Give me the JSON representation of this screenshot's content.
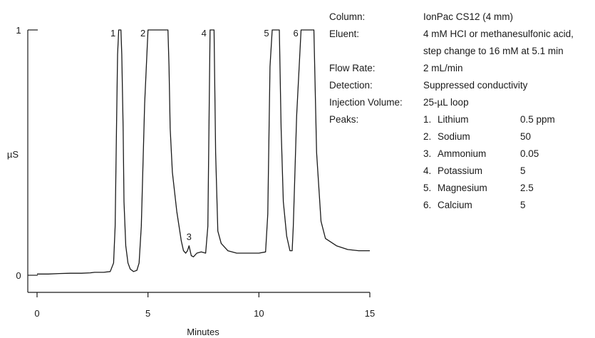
{
  "conditions": [
    {
      "key": "Column:",
      "value": "IonPac CS12 (4 mm)"
    },
    {
      "key": "Eluent:",
      "value": "4 mM HCI or methanesulfonic acid,\nstep change to 16 mM at 5.1 min"
    },
    {
      "key": "Flow Rate:",
      "value": "2 mL/min"
    },
    {
      "key": "Detection:",
      "value": "Suppressed conductivity"
    },
    {
      "key": "Injection Volume:",
      "value": "25-µL loop"
    }
  ],
  "peaks_label": "Peaks:",
  "peaks": [
    {
      "num": "1.",
      "name": "Lithium",
      "conc": "0.5 ppm"
    },
    {
      "num": "2.",
      "name": "Sodium",
      "conc": "50"
    },
    {
      "num": "3.",
      "name": "Ammonium",
      "conc": "0.05"
    },
    {
      "num": "4.",
      "name": "Potassium",
      "conc": "5"
    },
    {
      "num": "5.",
      "name": "Magnesium",
      "conc": "2.5"
    },
    {
      "num": "6.",
      "name": "Calcium",
      "conc": "5"
    }
  ],
  "chart_data": {
    "type": "line",
    "xlabel": "Minutes",
    "ylabel": "µS",
    "xlim": [
      0,
      15
    ],
    "ylim": [
      0,
      1
    ],
    "xticks": [
      0,
      5,
      10,
      15
    ],
    "yticks": [
      0,
      1
    ],
    "grid": false,
    "legend": "none",
    "series": [
      {
        "x": [
          0,
          0.5,
          1,
          1.5,
          2,
          2.4,
          2.6,
          3,
          3.3,
          3.45,
          3.52,
          3.58,
          3.63,
          3.68,
          3.7,
          3.78,
          3.82,
          3.88,
          3.92,
          4.0,
          4.1,
          4.2,
          4.35,
          4.5,
          4.6,
          4.7,
          4.85,
          5.0,
          5.1,
          5.9,
          5.95,
          6.0,
          6.1,
          6.3,
          6.5,
          6.6,
          6.7,
          6.78,
          6.85,
          6.95,
          7.05,
          7.2,
          7.4,
          7.6,
          7.7,
          7.8,
          7.98,
          8.05,
          8.15,
          8.3,
          8.6,
          9.0,
          9.5,
          10.0,
          10.3,
          10.4,
          10.5,
          10.6,
          10.72,
          10.92,
          11.0,
          11.1,
          11.25,
          11.4,
          11.5,
          11.55,
          11.7,
          11.9,
          12.05,
          12.48,
          12.6,
          12.8,
          13.0,
          13.5,
          14.0,
          14.5,
          15
        ],
        "y": [
          0.005,
          0.005,
          0.007,
          0.008,
          0.008,
          0.01,
          0.012,
          0.012,
          0.015,
          0.05,
          0.2,
          0.6,
          0.9,
          1.0,
          1.0,
          1.0,
          0.9,
          0.6,
          0.3,
          0.12,
          0.05,
          0.025,
          0.015,
          0.02,
          0.05,
          0.2,
          0.7,
          1.0,
          1.0,
          1.0,
          0.85,
          0.6,
          0.42,
          0.26,
          0.14,
          0.1,
          0.09,
          0.1,
          0.12,
          0.08,
          0.075,
          0.09,
          0.095,
          0.09,
          0.2,
          1.0,
          1.0,
          0.5,
          0.18,
          0.13,
          0.1,
          0.09,
          0.09,
          0.09,
          0.095,
          0.25,
          0.85,
          1.0,
          1.0,
          1.0,
          0.6,
          0.3,
          0.16,
          0.1,
          0.1,
          0.2,
          0.65,
          1.0,
          1.0,
          1.0,
          0.5,
          0.22,
          0.15,
          0.12,
          0.105,
          0.1,
          0.1
        ]
      }
    ],
    "annotations": [
      {
        "label": "1",
        "x": 3.7
      },
      {
        "label": "2",
        "x": 5.05
      },
      {
        "label": "3",
        "x": 6.85
      },
      {
        "label": "4",
        "x": 7.8
      },
      {
        "label": "5",
        "x": 10.62
      },
      {
        "label": "6",
        "x": 11.94
      }
    ]
  }
}
